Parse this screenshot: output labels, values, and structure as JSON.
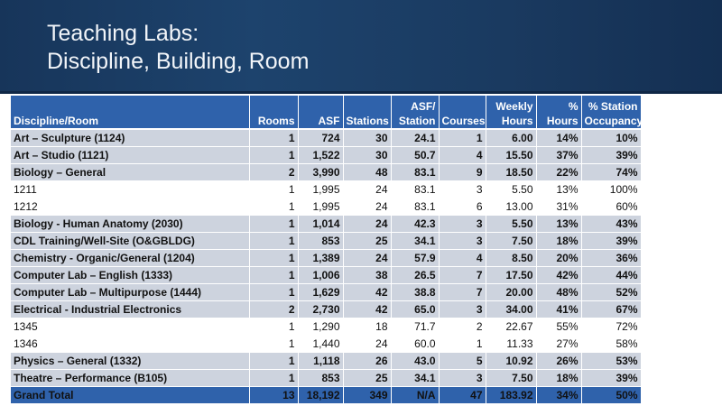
{
  "slide": {
    "title_line1": "Teaching Labs:",
    "title_line2": "Discipline, Building, Room",
    "banner_color": "#1d436d",
    "header_color": "#2f62ab",
    "row_shade_color": "#cdd3de"
  },
  "table": {
    "headers": {
      "discipline": "Discipline/Room",
      "rooms": "Rooms",
      "asf": "ASF",
      "stations": "Stations",
      "asf_station_top": "ASF/",
      "asf_station_bottom": "Station",
      "courses": "Courses",
      "weekly_top": "Weekly",
      "weekly_bottom": "Hours",
      "pct_hours_top": "%",
      "pct_hours_bottom": "Hours",
      "pct_station_top": "% Station",
      "pct_station_bottom": "Occupancy"
    },
    "rows": [
      {
        "name": "Art – Sculpture (1124)",
        "rooms": "1",
        "asf": "724",
        "stations": "30",
        "asf_station": "24.1",
        "courses": "1",
        "weekly_hours": "6.00",
        "pct_hours": "14%",
        "pct_occupancy": "10%"
      },
      {
        "name": "Art – Studio (1121)",
        "rooms": "1",
        "asf": "1,522",
        "stations": "30",
        "asf_station": "50.7",
        "courses": "4",
        "weekly_hours": "15.50",
        "pct_hours": "37%",
        "pct_occupancy": "39%"
      },
      {
        "name": "Biology – General",
        "rooms": "2",
        "asf": "3,990",
        "stations": "48",
        "asf_station": "83.1",
        "courses": "9",
        "weekly_hours": "18.50",
        "pct_hours": "22%",
        "pct_occupancy": "74%"
      },
      {
        "name": "1211",
        "rooms": "1",
        "asf": "1,995",
        "stations": "24",
        "asf_station": "83.1",
        "courses": "3",
        "weekly_hours": "5.50",
        "pct_hours": "13%",
        "pct_occupancy": "100%"
      },
      {
        "name": "1212",
        "rooms": "1",
        "asf": "1,995",
        "stations": "24",
        "asf_station": "83.1",
        "courses": "6",
        "weekly_hours": "13.00",
        "pct_hours": "31%",
        "pct_occupancy": "60%"
      },
      {
        "name": "Biology - Human Anatomy (2030)",
        "rooms": "1",
        "asf": "1,014",
        "stations": "24",
        "asf_station": "42.3",
        "courses": "3",
        "weekly_hours": "5.50",
        "pct_hours": "13%",
        "pct_occupancy": "43%"
      },
      {
        "name": "CDL Training/Well-Site (O&GBLDG)",
        "rooms": "1",
        "asf": "853",
        "stations": "25",
        "asf_station": "34.1",
        "courses": "3",
        "weekly_hours": "7.50",
        "pct_hours": "18%",
        "pct_occupancy": "39%"
      },
      {
        "name": "Chemistry - Organic/General  (1204)",
        "rooms": "1",
        "asf": "1,389",
        "stations": "24",
        "asf_station": "57.9",
        "courses": "4",
        "weekly_hours": "8.50",
        "pct_hours": "20%",
        "pct_occupancy": "36%"
      },
      {
        "name": "Computer Lab – English (1333)",
        "rooms": "1",
        "asf": "1,006",
        "stations": "38",
        "asf_station": "26.5",
        "courses": "7",
        "weekly_hours": "17.50",
        "pct_hours": "42%",
        "pct_occupancy": "44%"
      },
      {
        "name": "Computer Lab – Multipurpose (1444)",
        "rooms": "1",
        "asf": "1,629",
        "stations": "42",
        "asf_station": "38.8",
        "courses": "7",
        "weekly_hours": "20.00",
        "pct_hours": "48%",
        "pct_occupancy": "52%"
      },
      {
        "name": "Electrical - Industrial Electronics",
        "rooms": "2",
        "asf": "2,730",
        "stations": "42",
        "asf_station": "65.0",
        "courses": "3",
        "weekly_hours": "34.00",
        "pct_hours": "41%",
        "pct_occupancy": "67%"
      },
      {
        "name": "1345",
        "rooms": "1",
        "asf": "1,290",
        "stations": "18",
        "asf_station": "71.7",
        "courses": "2",
        "weekly_hours": "22.67",
        "pct_hours": "55%",
        "pct_occupancy": "72%"
      },
      {
        "name": "1346",
        "rooms": "1",
        "asf": "1,440",
        "stations": "24",
        "asf_station": "60.0",
        "courses": "1",
        "weekly_hours": "11.33",
        "pct_hours": "27%",
        "pct_occupancy": "58%"
      },
      {
        "name": "Physics – General (1332)",
        "rooms": "1",
        "asf": "1,118",
        "stations": "26",
        "asf_station": "43.0",
        "courses": "5",
        "weekly_hours": "10.92",
        "pct_hours": "26%",
        "pct_occupancy": "53%"
      },
      {
        "name": "Theatre – Performance (B105)",
        "rooms": "1",
        "asf": "853",
        "stations": "25",
        "asf_station": "34.1",
        "courses": "3",
        "weekly_hours": "7.50",
        "pct_hours": "18%",
        "pct_occupancy": "39%"
      }
    ],
    "total": {
      "name": "Grand Total",
      "rooms": "13",
      "asf": "18,192",
      "stations": "349",
      "asf_station": "N/A",
      "courses": "47",
      "weekly_hours": "183.92",
      "pct_hours": "34%",
      "pct_occupancy": "50%"
    }
  }
}
